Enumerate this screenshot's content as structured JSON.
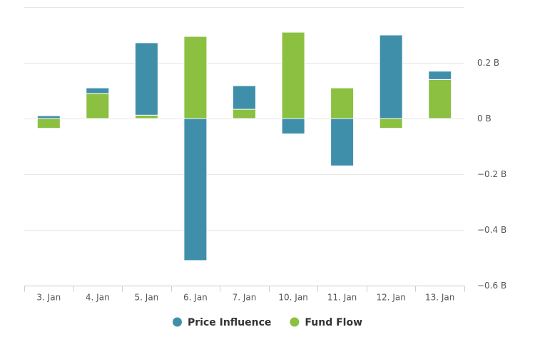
{
  "chart_data": {
    "type": "bar",
    "stacked": true,
    "categories": [
      "3. Jan",
      "4. Jan",
      "5. Jan",
      "6. Jan",
      "7. Jan",
      "10. Jan",
      "11. Jan",
      "12. Jan",
      "13. Jan"
    ],
    "series": [
      {
        "name": "Price Influence",
        "color": "#3f8fab",
        "values": [
          0.01,
          0.02,
          0.26,
          -0.51,
          0.085,
          -0.055,
          -0.17,
          0.3,
          0.03
        ]
      },
      {
        "name": "Fund Flow",
        "color": "#8bc040",
        "values": [
          -0.035,
          0.09,
          0.012,
          0.295,
          0.033,
          0.31,
          0.11,
          -0.035,
          0.14
        ]
      }
    ],
    "y_ticks": [
      0.2,
      0,
      -0.2,
      -0.4,
      -0.6
    ],
    "y_tick_labels": [
      "0.2 B",
      "0 B",
      "−0.2 B",
      "−0.4 B",
      "−0.6 B"
    ],
    "ylim": [
      -0.6,
      0.4
    ],
    "y_axis_position": "right",
    "grid": true,
    "legend_position": "bottom-center",
    "title": "",
    "xlabel": "",
    "ylabel": ""
  }
}
